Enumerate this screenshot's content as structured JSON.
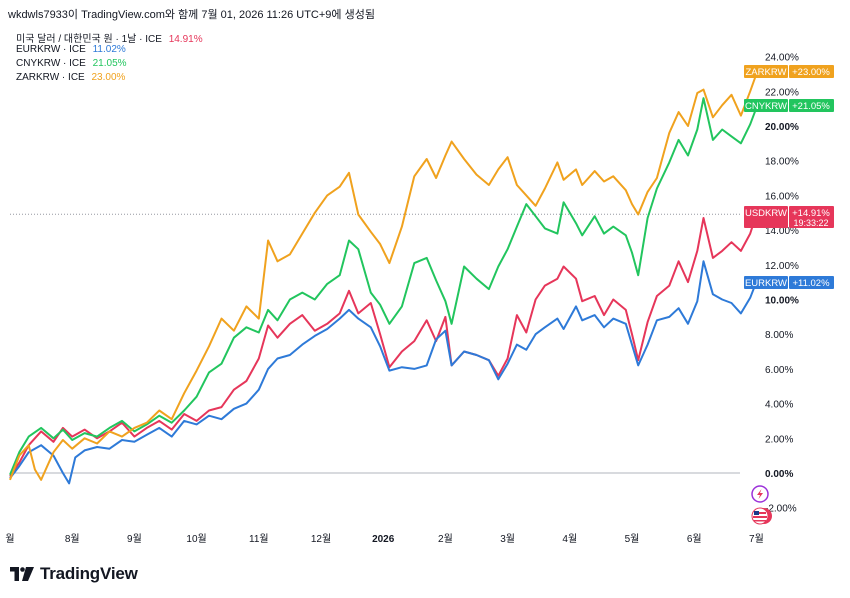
{
  "header": {
    "text": "wkdwls7933이 TradingView.com와 함께 7월 01, 2026 11:26 UTC+9에 생성됨"
  },
  "legend": [
    {
      "label": "미국 달러 / 대한민국 원 · 1날 · ICE",
      "value": "14.91%",
      "color": "#e6365a"
    },
    {
      "label": "EURKRW · ICE",
      "value": "11.02%",
      "color": "#2e7ad8"
    },
    {
      "label": "CNYKRW · ICE",
      "value": "21.05%",
      "color": "#22c55e"
    },
    {
      "label": "ZARKRW · ICE",
      "value": "23.00%",
      "color": "#f0a21e"
    }
  ],
  "badges": [
    {
      "symbol": "ZARKRW",
      "value": "+23.00%",
      "time": "",
      "color": "#f0a21e"
    },
    {
      "symbol": "CNYKRW",
      "value": "+21.05%",
      "time": "",
      "color": "#22c55e"
    },
    {
      "symbol": "USDKRW",
      "value": "+14.91%",
      "time": "19:33:22",
      "color": "#e6365a"
    },
    {
      "symbol": "EURKRW",
      "value": "+11.02%",
      "time": "",
      "color": "#2e7ad8"
    }
  ],
  "brand": {
    "name": "TradingView",
    "icon": "tradingview-logo-icon"
  },
  "icons": [
    "lightning-icon",
    "us-flag-icon"
  ],
  "chart_data": {
    "type": "line",
    "x_labels": [
      "월",
      "8월",
      "9월",
      "10월",
      "11월",
      "12월",
      "2026",
      "2월",
      "3월",
      "4월",
      "5월",
      "6월",
      "7월"
    ],
    "y_ticks": [
      "-2.00%",
      "0.00%",
      "2.00%",
      "4.00%",
      "6.00%",
      "8.00%",
      "10.00%",
      "12.00%",
      "14.00%",
      "16.00%",
      "18.00%",
      "20.00%",
      "22.00%",
      "24.00%"
    ],
    "ylim": [
      -3,
      25
    ],
    "x_range": [
      0,
      12.3
    ],
    "x_unit": "month index (0 = first month label)",
    "series": [
      {
        "name": "USDKRW",
        "color": "#e6365a",
        "points": [
          [
            0,
            -0.2
          ],
          [
            0.15,
            0.6
          ],
          [
            0.3,
            1.6
          ],
          [
            0.5,
            2.4
          ],
          [
            0.7,
            1.8
          ],
          [
            0.85,
            2.6
          ],
          [
            1.0,
            2.1
          ],
          [
            1.2,
            2.5
          ],
          [
            1.4,
            2.0
          ],
          [
            1.6,
            2.4
          ],
          [
            1.8,
            2.9
          ],
          [
            2.0,
            2.1
          ],
          [
            2.2,
            2.6
          ],
          [
            2.4,
            3.0
          ],
          [
            2.6,
            2.5
          ],
          [
            2.8,
            3.4
          ],
          [
            3.0,
            3.0
          ],
          [
            3.2,
            3.6
          ],
          [
            3.4,
            3.8
          ],
          [
            3.6,
            4.8
          ],
          [
            3.8,
            5.3
          ],
          [
            4.0,
            6.6
          ],
          [
            4.15,
            8.5
          ],
          [
            4.3,
            7.8
          ],
          [
            4.5,
            8.6
          ],
          [
            4.7,
            9.1
          ],
          [
            4.9,
            8.2
          ],
          [
            5.1,
            8.6
          ],
          [
            5.3,
            9.2
          ],
          [
            5.45,
            10.5
          ],
          [
            5.6,
            9.2
          ],
          [
            5.8,
            9.8
          ],
          [
            5.95,
            8.0
          ],
          [
            6.1,
            6.1
          ],
          [
            6.3,
            7.0
          ],
          [
            6.5,
            7.6
          ],
          [
            6.7,
            8.8
          ],
          [
            6.85,
            7.6
          ],
          [
            7.0,
            9.0
          ],
          [
            7.1,
            6.2
          ],
          [
            7.3,
            7.0
          ],
          [
            7.5,
            6.8
          ],
          [
            7.7,
            6.5
          ],
          [
            7.85,
            5.6
          ],
          [
            8.0,
            6.6
          ],
          [
            8.15,
            9.1
          ],
          [
            8.3,
            8.1
          ],
          [
            8.45,
            10.0
          ],
          [
            8.6,
            10.8
          ],
          [
            8.8,
            11.2
          ],
          [
            8.9,
            11.9
          ],
          [
            9.1,
            11.2
          ],
          [
            9.2,
            9.9
          ],
          [
            9.4,
            10.2
          ],
          [
            9.55,
            9.1
          ],
          [
            9.7,
            10.0
          ],
          [
            9.9,
            9.4
          ],
          [
            10.0,
            8.0
          ],
          [
            10.1,
            6.5
          ],
          [
            10.25,
            8.7
          ],
          [
            10.4,
            10.2
          ],
          [
            10.6,
            10.8
          ],
          [
            10.75,
            12.2
          ],
          [
            10.9,
            11.0
          ],
          [
            11.05,
            12.8
          ],
          [
            11.15,
            14.7
          ],
          [
            11.3,
            12.4
          ],
          [
            11.45,
            12.8
          ],
          [
            11.6,
            13.3
          ],
          [
            11.75,
            12.8
          ],
          [
            11.9,
            13.8
          ],
          [
            12.0,
            14.91
          ]
        ]
      },
      {
        "name": "EURKRW",
        "color": "#2e7ad8",
        "points": [
          [
            0,
            -0.3
          ],
          [
            0.15,
            0.4
          ],
          [
            0.3,
            1.2
          ],
          [
            0.5,
            1.6
          ],
          [
            0.7,
            1.0
          ],
          [
            0.85,
            0.0
          ],
          [
            0.95,
            -0.6
          ],
          [
            1.05,
            0.9
          ],
          [
            1.2,
            1.3
          ],
          [
            1.4,
            1.5
          ],
          [
            1.6,
            1.4
          ],
          [
            1.8,
            1.9
          ],
          [
            2.0,
            1.8
          ],
          [
            2.2,
            2.2
          ],
          [
            2.4,
            2.6
          ],
          [
            2.6,
            2.1
          ],
          [
            2.8,
            3.0
          ],
          [
            3.0,
            2.8
          ],
          [
            3.2,
            3.3
          ],
          [
            3.4,
            3.1
          ],
          [
            3.6,
            3.7
          ],
          [
            3.8,
            4.0
          ],
          [
            4.0,
            4.8
          ],
          [
            4.15,
            6.0
          ],
          [
            4.3,
            6.6
          ],
          [
            4.5,
            6.8
          ],
          [
            4.7,
            7.4
          ],
          [
            4.9,
            7.9
          ],
          [
            5.1,
            8.3
          ],
          [
            5.3,
            8.9
          ],
          [
            5.45,
            9.4
          ],
          [
            5.6,
            8.9
          ],
          [
            5.8,
            8.4
          ],
          [
            5.95,
            7.3
          ],
          [
            6.1,
            5.9
          ],
          [
            6.3,
            6.1
          ],
          [
            6.5,
            6.0
          ],
          [
            6.7,
            6.2
          ],
          [
            6.85,
            7.7
          ],
          [
            7.0,
            8.2
          ],
          [
            7.1,
            6.2
          ],
          [
            7.3,
            7.0
          ],
          [
            7.5,
            6.8
          ],
          [
            7.7,
            6.5
          ],
          [
            7.85,
            5.4
          ],
          [
            8.0,
            6.3
          ],
          [
            8.15,
            7.4
          ],
          [
            8.3,
            7.1
          ],
          [
            8.45,
            8.0
          ],
          [
            8.6,
            8.4
          ],
          [
            8.8,
            8.9
          ],
          [
            8.9,
            8.3
          ],
          [
            9.1,
            9.6
          ],
          [
            9.2,
            8.8
          ],
          [
            9.4,
            9.1
          ],
          [
            9.55,
            8.4
          ],
          [
            9.7,
            8.9
          ],
          [
            9.9,
            8.6
          ],
          [
            10.0,
            7.4
          ],
          [
            10.1,
            6.2
          ],
          [
            10.25,
            7.4
          ],
          [
            10.4,
            8.8
          ],
          [
            10.6,
            9.0
          ],
          [
            10.75,
            9.5
          ],
          [
            10.9,
            8.6
          ],
          [
            11.05,
            9.9
          ],
          [
            11.15,
            12.2
          ],
          [
            11.3,
            10.3
          ],
          [
            11.45,
            10.0
          ],
          [
            11.6,
            9.8
          ],
          [
            11.75,
            9.2
          ],
          [
            11.9,
            10.1
          ],
          [
            12.0,
            11.02
          ]
        ]
      },
      {
        "name": "CNYKRW",
        "color": "#22c55e",
        "points": [
          [
            0,
            -0.1
          ],
          [
            0.15,
            1.2
          ],
          [
            0.3,
            2.1
          ],
          [
            0.5,
            2.6
          ],
          [
            0.7,
            2.0
          ],
          [
            0.85,
            2.5
          ],
          [
            1.0,
            1.9
          ],
          [
            1.2,
            2.3
          ],
          [
            1.4,
            2.1
          ],
          [
            1.6,
            2.6
          ],
          [
            1.8,
            3.0
          ],
          [
            2.0,
            2.4
          ],
          [
            2.2,
            2.8
          ],
          [
            2.4,
            3.3
          ],
          [
            2.6,
            2.9
          ],
          [
            2.8,
            3.6
          ],
          [
            3.0,
            4.4
          ],
          [
            3.2,
            5.8
          ],
          [
            3.4,
            6.3
          ],
          [
            3.6,
            7.8
          ],
          [
            3.8,
            8.4
          ],
          [
            4.0,
            8.1
          ],
          [
            4.15,
            9.4
          ],
          [
            4.3,
            8.8
          ],
          [
            4.5,
            10.0
          ],
          [
            4.7,
            10.4
          ],
          [
            4.9,
            10.0
          ],
          [
            5.1,
            10.9
          ],
          [
            5.3,
            11.4
          ],
          [
            5.45,
            13.4
          ],
          [
            5.6,
            12.9
          ],
          [
            5.8,
            10.4
          ],
          [
            5.95,
            9.7
          ],
          [
            6.1,
            8.6
          ],
          [
            6.3,
            9.6
          ],
          [
            6.5,
            12.1
          ],
          [
            6.7,
            12.4
          ],
          [
            6.85,
            11.1
          ],
          [
            7.0,
            9.9
          ],
          [
            7.1,
            8.6
          ],
          [
            7.3,
            11.9
          ],
          [
            7.5,
            11.2
          ],
          [
            7.7,
            10.6
          ],
          [
            7.85,
            11.9
          ],
          [
            8.0,
            12.9
          ],
          [
            8.15,
            14.2
          ],
          [
            8.3,
            15.5
          ],
          [
            8.45,
            14.8
          ],
          [
            8.6,
            14.1
          ],
          [
            8.8,
            13.8
          ],
          [
            8.9,
            15.6
          ],
          [
            9.1,
            14.4
          ],
          [
            9.2,
            13.7
          ],
          [
            9.4,
            14.8
          ],
          [
            9.55,
            13.8
          ],
          [
            9.7,
            14.2
          ],
          [
            9.9,
            13.7
          ],
          [
            10.0,
            12.7
          ],
          [
            10.1,
            11.4
          ],
          [
            10.25,
            14.7
          ],
          [
            10.4,
            16.4
          ],
          [
            10.6,
            17.9
          ],
          [
            10.75,
            19.2
          ],
          [
            10.9,
            18.3
          ],
          [
            11.05,
            19.8
          ],
          [
            11.15,
            21.6
          ],
          [
            11.3,
            19.2
          ],
          [
            11.45,
            19.8
          ],
          [
            11.6,
            19.4
          ],
          [
            11.75,
            19.0
          ],
          [
            11.9,
            20.1
          ],
          [
            12.0,
            21.05
          ]
        ]
      },
      {
        "name": "ZARKRW",
        "color": "#f0a21e",
        "points": [
          [
            0,
            -0.4
          ],
          [
            0.15,
            1.0
          ],
          [
            0.3,
            1.6
          ],
          [
            0.4,
            0.2
          ],
          [
            0.5,
            -0.4
          ],
          [
            0.7,
            1.2
          ],
          [
            0.85,
            1.9
          ],
          [
            1.0,
            1.4
          ],
          [
            1.2,
            2.0
          ],
          [
            1.4,
            1.7
          ],
          [
            1.6,
            2.4
          ],
          [
            1.8,
            2.1
          ],
          [
            2.0,
            2.6
          ],
          [
            2.2,
            2.9
          ],
          [
            2.4,
            3.6
          ],
          [
            2.6,
            3.1
          ],
          [
            2.8,
            4.6
          ],
          [
            3.0,
            5.9
          ],
          [
            3.2,
            7.3
          ],
          [
            3.4,
            8.9
          ],
          [
            3.6,
            8.2
          ],
          [
            3.8,
            9.6
          ],
          [
            4.0,
            8.9
          ],
          [
            4.15,
            13.4
          ],
          [
            4.3,
            12.2
          ],
          [
            4.5,
            12.6
          ],
          [
            4.7,
            13.8
          ],
          [
            4.9,
            15.0
          ],
          [
            5.1,
            16.0
          ],
          [
            5.3,
            16.5
          ],
          [
            5.45,
            17.3
          ],
          [
            5.6,
            14.9
          ],
          [
            5.8,
            13.9
          ],
          [
            5.95,
            13.2
          ],
          [
            6.1,
            12.1
          ],
          [
            6.3,
            14.2
          ],
          [
            6.5,
            17.1
          ],
          [
            6.7,
            18.1
          ],
          [
            6.85,
            17.0
          ],
          [
            7.0,
            18.3
          ],
          [
            7.1,
            19.1
          ],
          [
            7.3,
            18.1
          ],
          [
            7.5,
            17.2
          ],
          [
            7.7,
            16.6
          ],
          [
            7.85,
            17.5
          ],
          [
            8.0,
            18.2
          ],
          [
            8.15,
            16.6
          ],
          [
            8.3,
            16.0
          ],
          [
            8.45,
            15.4
          ],
          [
            8.6,
            16.4
          ],
          [
            8.8,
            17.9
          ],
          [
            8.9,
            16.9
          ],
          [
            9.1,
            17.5
          ],
          [
            9.2,
            16.6
          ],
          [
            9.4,
            17.4
          ],
          [
            9.55,
            16.8
          ],
          [
            9.7,
            17.1
          ],
          [
            9.9,
            16.3
          ],
          [
            10.0,
            15.5
          ],
          [
            10.1,
            14.9
          ],
          [
            10.25,
            16.2
          ],
          [
            10.4,
            17.0
          ],
          [
            10.6,
            19.6
          ],
          [
            10.75,
            20.8
          ],
          [
            10.9,
            20.0
          ],
          [
            11.05,
            21.9
          ],
          [
            11.15,
            22.1
          ],
          [
            11.3,
            20.5
          ],
          [
            11.45,
            21.2
          ],
          [
            11.6,
            21.8
          ],
          [
            11.75,
            20.6
          ],
          [
            11.9,
            22.0
          ],
          [
            12.0,
            23.0
          ]
        ]
      }
    ],
    "reference_line": 14.91
  }
}
